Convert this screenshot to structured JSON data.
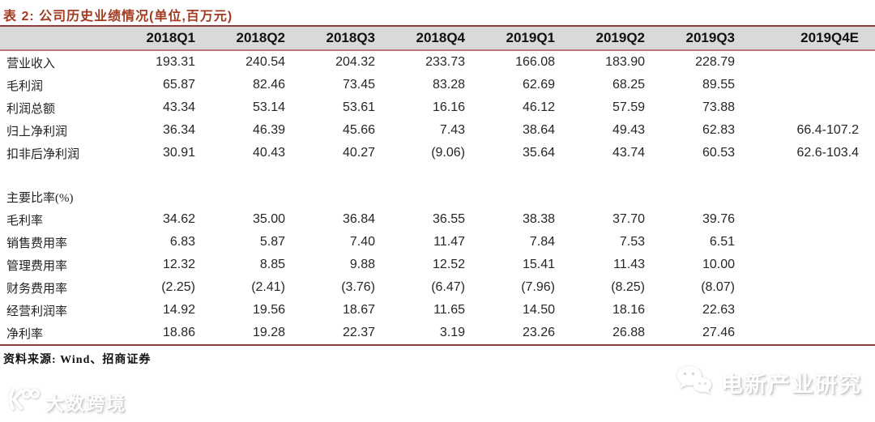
{
  "colors": {
    "title": "#A33B21",
    "header_bg": "#D9D9D9",
    "border_dark": "#8E3B3B",
    "border_light": "#C27677",
    "negative": "#F51616"
  },
  "table": {
    "title": "表 2: 公司历史业绩情况(单位,百万元)",
    "columns": [
      "2018Q1",
      "2018Q2",
      "2018Q3",
      "2018Q4",
      "2019Q1",
      "2019Q2",
      "2019Q3",
      "2019Q4E"
    ],
    "rows": [
      {
        "label": "营业收入",
        "values": [
          "193.31",
          "240.54",
          "204.32",
          "233.73",
          "166.08",
          "183.90",
          "228.79",
          ""
        ]
      },
      {
        "label": "毛利润",
        "values": [
          "65.87",
          "82.46",
          "73.45",
          "83.28",
          "62.69",
          "68.25",
          "89.55",
          ""
        ]
      },
      {
        "label": "利润总额",
        "values": [
          "43.34",
          "53.14",
          "53.61",
          "16.16",
          "46.12",
          "57.59",
          "73.88",
          ""
        ]
      },
      {
        "label": "归上净利润",
        "values": [
          "36.34",
          "46.39",
          "45.66",
          "7.43",
          "38.64",
          "49.43",
          "62.83",
          "66.4-107.2"
        ]
      },
      {
        "label": "扣非后净利润",
        "values": [
          "30.91",
          "40.43",
          "40.27",
          "(9.06)",
          "35.64",
          "43.74",
          "60.53",
          "62.6-103.4"
        ]
      },
      {
        "label": "",
        "values": [],
        "spacer": true
      },
      {
        "label": "主要比率(%)",
        "values": []
      },
      {
        "label": "毛利率",
        "values": [
          "34.62",
          "35.00",
          "36.84",
          "36.55",
          "38.38",
          "37.70",
          "39.76",
          ""
        ]
      },
      {
        "label": "销售费用率",
        "values": [
          "6.83",
          "5.87",
          "7.40",
          "11.47",
          "7.84",
          "7.53",
          "6.51",
          ""
        ]
      },
      {
        "label": "管理费用率",
        "values": [
          "12.32",
          "8.85",
          "9.88",
          "12.52",
          "15.41",
          "11.43",
          "10.00",
          ""
        ]
      },
      {
        "label": "财务费用率",
        "values": [
          "(2.25)",
          "(2.41)",
          "(3.76)",
          "(6.47)",
          "(7.96)",
          "(8.25)",
          "(8.07)",
          ""
        ]
      },
      {
        "label": "经营利润率",
        "values": [
          "14.92",
          "19.56",
          "18.67",
          "11.65",
          "14.50",
          "18.16",
          "22.63",
          ""
        ]
      },
      {
        "label": "净利率",
        "values": [
          "18.86",
          "19.28",
          "22.37",
          "3.19",
          "23.26",
          "26.88",
          "27.46",
          ""
        ]
      }
    ],
    "source": "资料来源: Wind、招商证券"
  },
  "watermarks": {
    "right": {
      "label": "电新产业研究",
      "icon": "wechat-icon"
    },
    "left": {
      "label": "大数跨境",
      "icon": "k100-logo-icon"
    }
  }
}
